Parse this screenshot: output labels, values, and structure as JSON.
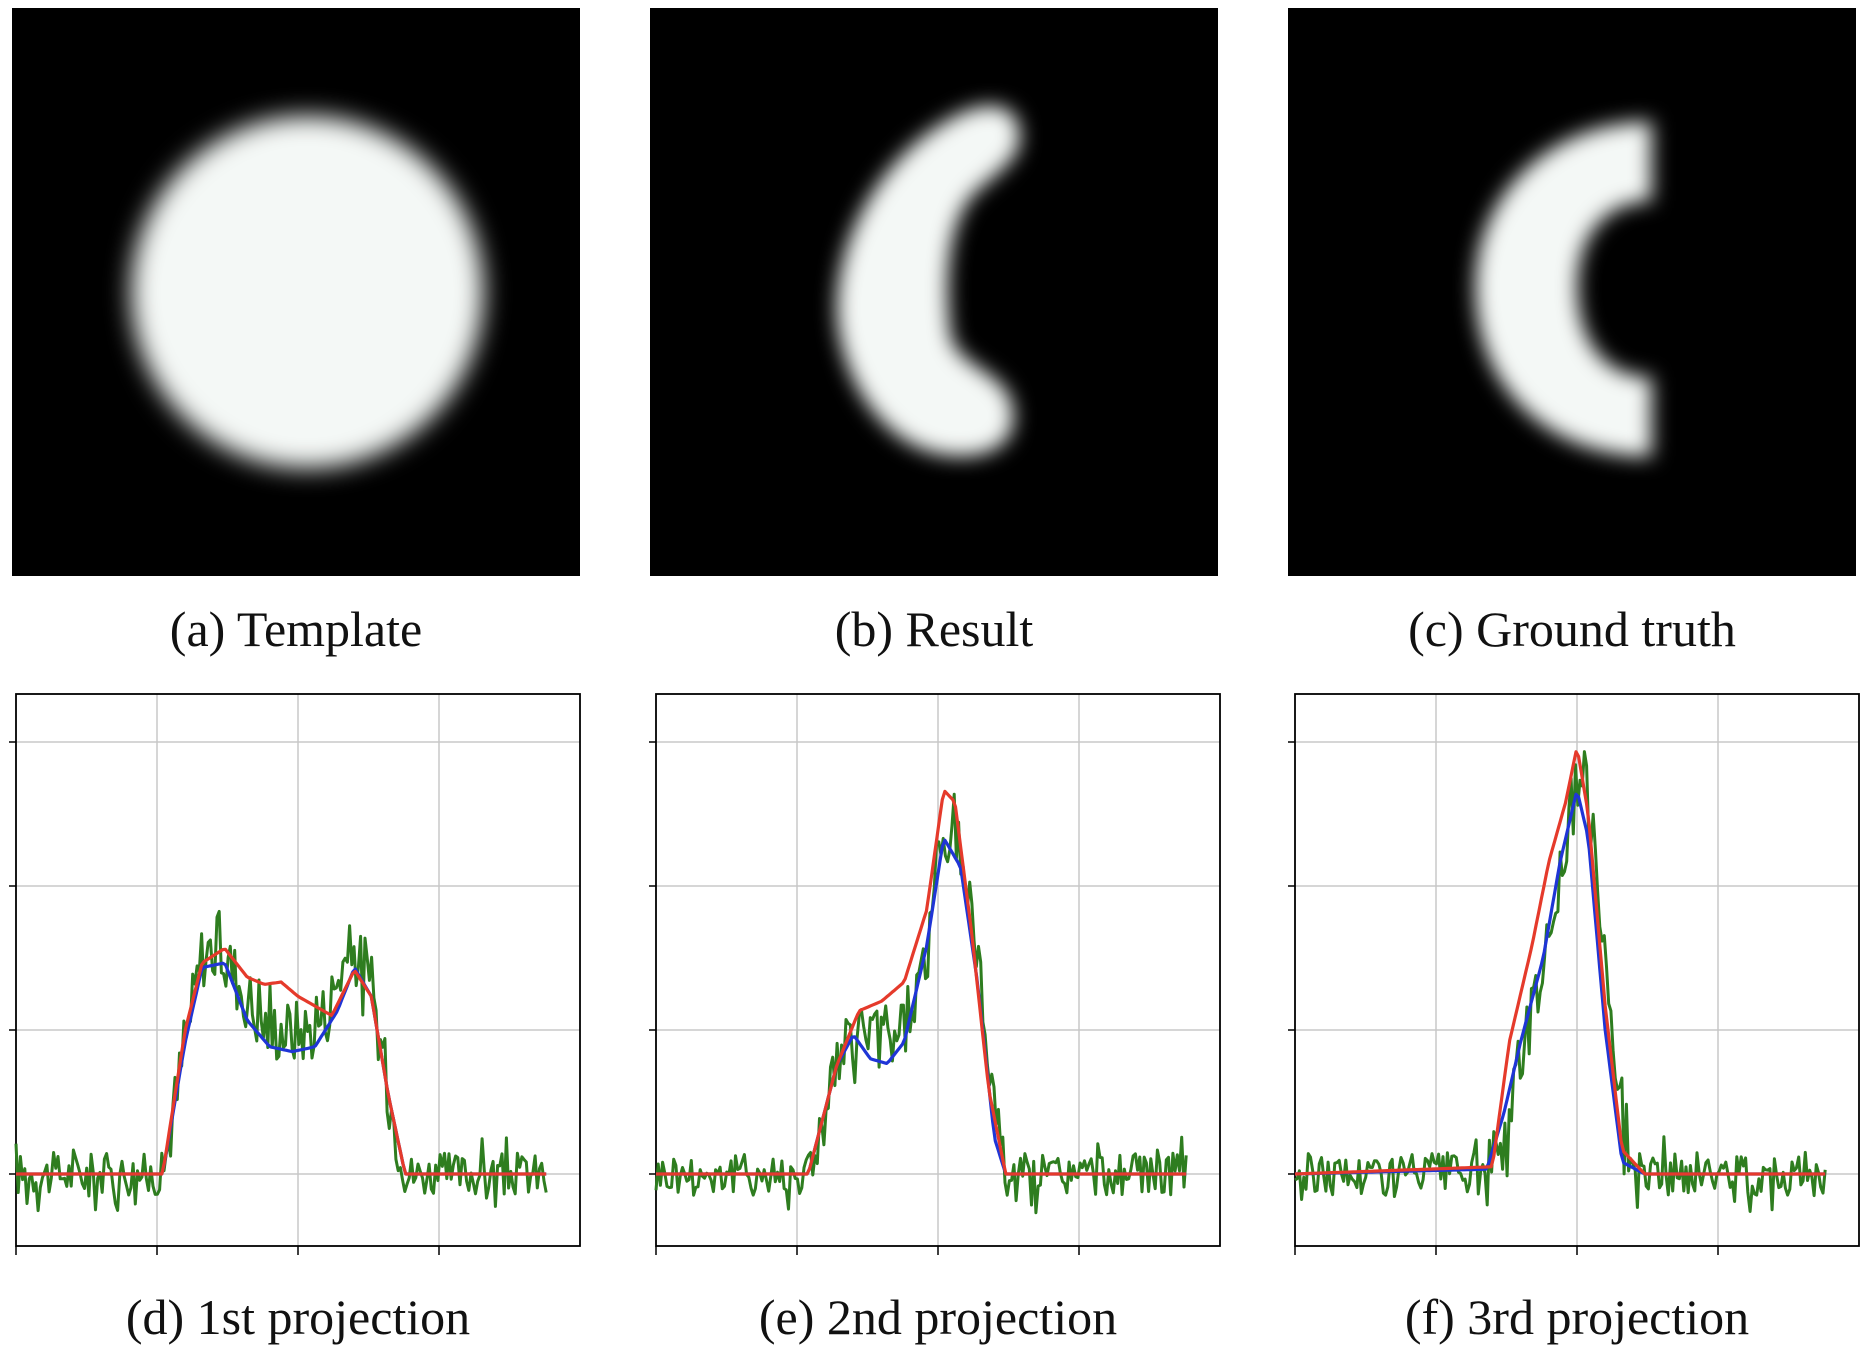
{
  "images": [
    {
      "caption": "(a) Template",
      "shape": "disk"
    },
    {
      "caption": "(b) Result",
      "shape": "crescent-result"
    },
    {
      "caption": "(c) Ground truth",
      "shape": "c-shape"
    }
  ],
  "chart_data": [
    {
      "type": "line",
      "caption": "(d) 1st projection",
      "grid": true,
      "xlim": [
        0,
        1
      ],
      "ylim": [
        -0.3,
        2.0
      ],
      "x_ticks": 4,
      "y_ticks": 4,
      "series": [
        {
          "color": "#2e7d1f",
          "style": "noisy",
          "points": [
            [
              0,
              0
            ],
            [
              0.26,
              0
            ],
            [
              0.3,
              0.55
            ],
            [
              0.33,
              0.92
            ],
            [
              0.36,
              0.96
            ],
            [
              0.4,
              0.78
            ],
            [
              0.44,
              0.62
            ],
            [
              0.48,
              0.6
            ],
            [
              0.52,
              0.6
            ],
            [
              0.55,
              0.68
            ],
            [
              0.58,
              0.88
            ],
            [
              0.6,
              0.93
            ],
            [
              0.63,
              0.78
            ],
            [
              0.66,
              0.35
            ],
            [
              0.69,
              0
            ],
            [
              1,
              0
            ]
          ]
        },
        {
          "color": "#1f35d6",
          "style": "smooth",
          "points": [
            [
              0,
              0
            ],
            [
              0.26,
              0
            ],
            [
              0.3,
              0.55
            ],
            [
              0.33,
              0.86
            ],
            [
              0.37,
              0.88
            ],
            [
              0.41,
              0.64
            ],
            [
              0.45,
              0.53
            ],
            [
              0.49,
              0.51
            ],
            [
              0.53,
              0.53
            ],
            [
              0.57,
              0.68
            ],
            [
              0.6,
              0.86
            ],
            [
              0.63,
              0.74
            ],
            [
              0.66,
              0.33
            ],
            [
              0.69,
              0
            ],
            [
              1,
              0
            ]
          ]
        },
        {
          "color": "#e53a2b",
          "style": "smooth",
          "points": [
            [
              0,
              0
            ],
            [
              0.26,
              0
            ],
            [
              0.3,
              0.6
            ],
            [
              0.33,
              0.88
            ],
            [
              0.37,
              0.94
            ],
            [
              0.41,
              0.82
            ],
            [
              0.44,
              0.79
            ],
            [
              0.47,
              0.8
            ],
            [
              0.5,
              0.74
            ],
            [
              0.53,
              0.7
            ],
            [
              0.56,
              0.66
            ],
            [
              0.6,
              0.85
            ],
            [
              0.63,
              0.74
            ],
            [
              0.66,
              0.33
            ],
            [
              0.69,
              0
            ],
            [
              1,
              0
            ]
          ]
        }
      ]
    },
    {
      "type": "line",
      "caption": "(e) 2nd projection",
      "grid": true,
      "xlim": [
        0,
        1
      ],
      "ylim": [
        -0.3,
        2.0
      ],
      "x_ticks": 4,
      "y_ticks": 4,
      "series": [
        {
          "color": "#2e7d1f",
          "style": "noisy",
          "points": [
            [
              0,
              0
            ],
            [
              0.27,
              0
            ],
            [
              0.32,
              0.45
            ],
            [
              0.36,
              0.6
            ],
            [
              0.4,
              0.55
            ],
            [
              0.44,
              0.62
            ],
            [
              0.48,
              0.9
            ],
            [
              0.5,
              1.3
            ],
            [
              0.53,
              1.45
            ],
            [
              0.56,
              1.1
            ],
            [
              0.59,
              0.5
            ],
            [
              0.62,
              0
            ],
            [
              1,
              0
            ]
          ]
        },
        {
          "color": "#1f35d6",
          "style": "smooth",
          "points": [
            [
              0,
              0
            ],
            [
              0.27,
              0
            ],
            [
              0.32,
              0.45
            ],
            [
              0.35,
              0.58
            ],
            [
              0.38,
              0.48
            ],
            [
              0.41,
              0.46
            ],
            [
              0.44,
              0.55
            ],
            [
              0.48,
              0.95
            ],
            [
              0.51,
              1.4
            ],
            [
              0.54,
              1.28
            ],
            [
              0.57,
              0.8
            ],
            [
              0.6,
              0.15
            ],
            [
              0.62,
              0
            ],
            [
              1,
              0
            ]
          ]
        },
        {
          "color": "#e53a2b",
          "style": "smooth",
          "points": [
            [
              0,
              0
            ],
            [
              0.27,
              0
            ],
            [
              0.32,
              0.45
            ],
            [
              0.36,
              0.68
            ],
            [
              0.4,
              0.72
            ],
            [
              0.44,
              0.8
            ],
            [
              0.48,
              1.1
            ],
            [
              0.51,
              1.6
            ],
            [
              0.53,
              1.55
            ],
            [
              0.56,
              1.0
            ],
            [
              0.59,
              0.35
            ],
            [
              0.62,
              0
            ],
            [
              1,
              0
            ]
          ]
        }
      ]
    },
    {
      "type": "line",
      "caption": "(f) 3rd projection",
      "grid": true,
      "xlim": [
        0,
        1
      ],
      "ylim": [
        -0.3,
        2.0
      ],
      "x_ticks": 4,
      "y_ticks": 4,
      "series": [
        {
          "color": "#2e7d1f",
          "style": "noisy",
          "points": [
            [
              0,
              0
            ],
            [
              0.35,
              0
            ],
            [
              0.39,
              0.35
            ],
            [
              0.43,
              0.8
            ],
            [
              0.46,
              1.1
            ],
            [
              0.49,
              1.5
            ],
            [
              0.51,
              1.68
            ],
            [
              0.53,
              1.4
            ],
            [
              0.56,
              0.7
            ],
            [
              0.59,
              0.05
            ],
            [
              0.62,
              0
            ],
            [
              1,
              0
            ]
          ]
        },
        {
          "color": "#1f35d6",
          "style": "smooth",
          "points": [
            [
              0,
              0
            ],
            [
              0.34,
              0.02
            ],
            [
              0.37,
              0.25
            ],
            [
              0.4,
              0.55
            ],
            [
              0.44,
              0.9
            ],
            [
              0.47,
              1.3
            ],
            [
              0.5,
              1.6
            ],
            [
              0.52,
              1.4
            ],
            [
              0.55,
              0.6
            ],
            [
              0.58,
              0.05
            ],
            [
              0.62,
              0
            ],
            [
              1,
              0
            ]
          ]
        },
        {
          "color": "#e53a2b",
          "style": "smooth",
          "points": [
            [
              0,
              0
            ],
            [
              0.35,
              0.03
            ],
            [
              0.38,
              0.55
            ],
            [
              0.42,
              0.95
            ],
            [
              0.45,
              1.3
            ],
            [
              0.48,
              1.55
            ],
            [
              0.5,
              1.78
            ],
            [
              0.52,
              1.5
            ],
            [
              0.55,
              0.7
            ],
            [
              0.58,
              0.1
            ],
            [
              0.62,
              0
            ],
            [
              1,
              0
            ]
          ]
        }
      ]
    }
  ]
}
